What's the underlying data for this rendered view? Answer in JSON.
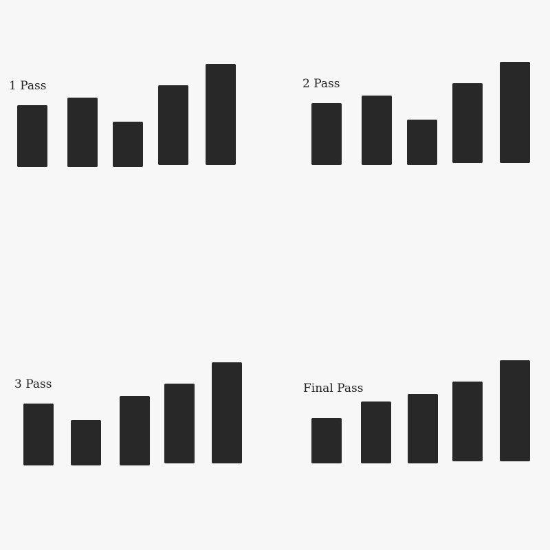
{
  "bar_color": "#282828",
  "background_color": "#f7f7f7",
  "chart_data": [
    {
      "type": "bar",
      "title": "1 Pass",
      "categories": [
        "",
        "",
        "",
        "",
        ""
      ],
      "values": [
        90,
        101,
        66,
        116,
        147
      ],
      "grid": false,
      "axes_visible": false
    },
    {
      "type": "bar",
      "title": "2 Pass",
      "categories": [
        "",
        "",
        "",
        "",
        ""
      ],
      "values": [
        90,
        101,
        66,
        116,
        147
      ],
      "grid": false,
      "axes_visible": false
    },
    {
      "type": "bar",
      "title": "3 Pass",
      "categories": [
        "",
        "",
        "",
        "",
        ""
      ],
      "values": [
        90,
        66,
        101,
        116,
        147
      ],
      "grid": false,
      "axes_visible": false
    },
    {
      "type": "bar",
      "title": "Final Pass",
      "categories": [
        "",
        "",
        "",
        "",
        ""
      ],
      "values": [
        66,
        90,
        101,
        116,
        147
      ],
      "grid": false,
      "axes_visible": false
    }
  ]
}
